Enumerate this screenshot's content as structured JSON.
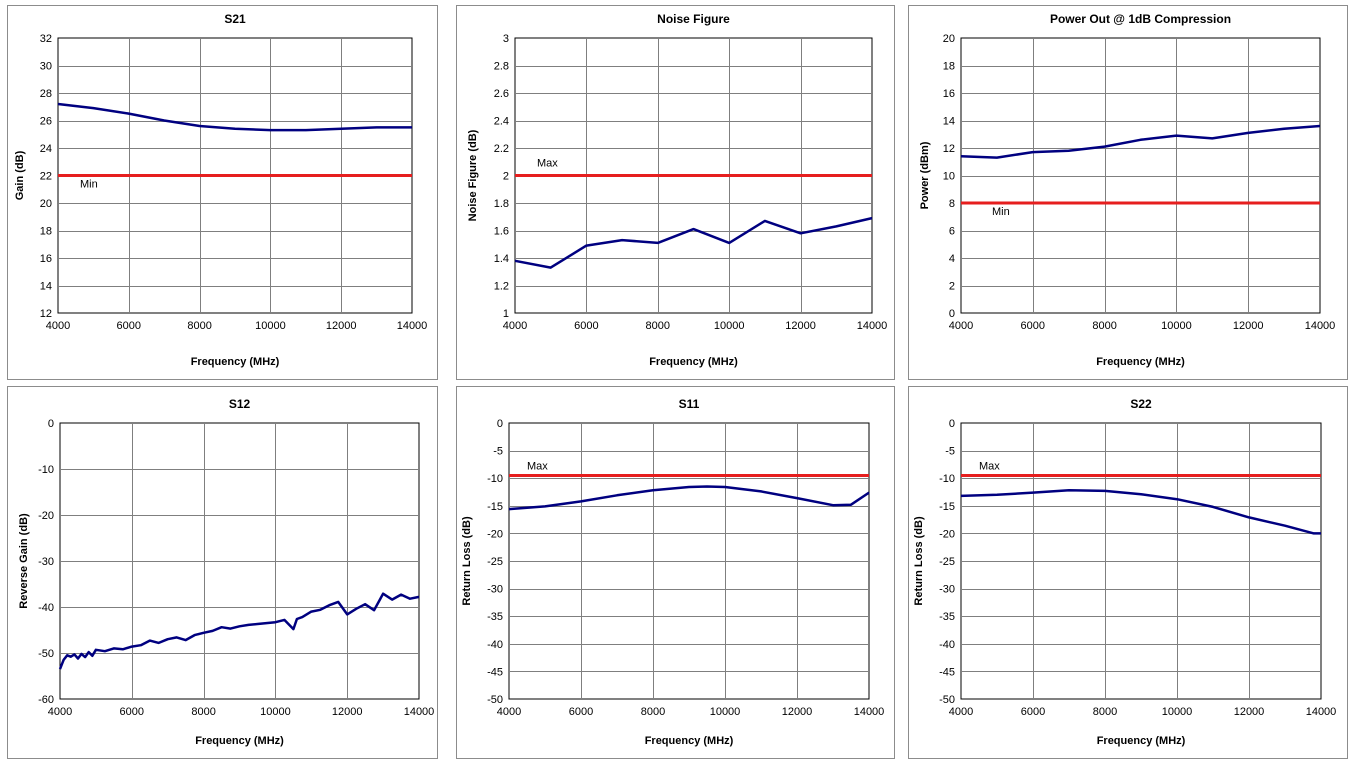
{
  "colors": {
    "series": "#000080",
    "limit": "#e61e1e",
    "grid": "#7f7f7f"
  },
  "chart_data": [
    {
      "type": "line",
      "title": "S21",
      "xlabel": "Frequency (MHz)",
      "ylabel": "Gain (dB)",
      "xlim": [
        4000,
        14000
      ],
      "ylim": [
        12,
        32
      ],
      "xticks": [
        4000,
        6000,
        8000,
        10000,
        12000,
        14000
      ],
      "yticks": [
        12,
        14,
        16,
        18,
        20,
        22,
        24,
        26,
        28,
        30,
        32
      ],
      "grid": true,
      "series": [
        {
          "x": [
            4000,
            5000,
            6000,
            7000,
            8000,
            9000,
            10000,
            11000,
            12000,
            13000,
            14000
          ],
          "y": [
            27.2,
            26.9,
            26.5,
            26.0,
            25.6,
            25.4,
            25.3,
            25.3,
            25.4,
            25.5,
            25.5
          ]
        }
      ],
      "limit": {
        "label": "Min",
        "value": 22
      }
    },
    {
      "type": "line",
      "title": "Noise Figure",
      "xlabel": "Frequency (MHz)",
      "ylabel": "Noise Figure (dB)",
      "xlim": [
        4000,
        14000
      ],
      "ylim": [
        1,
        3
      ],
      "xticks": [
        4000,
        6000,
        8000,
        10000,
        12000,
        14000
      ],
      "yticks": [
        1,
        1.2,
        1.4,
        1.6,
        1.8,
        2,
        2.2,
        2.4,
        2.6,
        2.8,
        3
      ],
      "grid": true,
      "series": [
        {
          "x": [
            4000,
            5000,
            6000,
            7000,
            8000,
            9000,
            10000,
            11000,
            12000,
            13000,
            14000
          ],
          "y": [
            1.38,
            1.33,
            1.49,
            1.53,
            1.51,
            1.61,
            1.51,
            1.67,
            1.58,
            1.63,
            1.69
          ]
        }
      ],
      "limit": {
        "label": "Max",
        "value": 2
      }
    },
    {
      "type": "line",
      "title": "Power Out @ 1dB Compression",
      "xlabel": "Frequency (MHz)",
      "ylabel": "Power (dBm)",
      "xlim": [
        4000,
        14000
      ],
      "ylim": [
        0,
        20
      ],
      "xticks": [
        4000,
        6000,
        8000,
        10000,
        12000,
        14000
      ],
      "yticks": [
        0,
        2,
        4,
        6,
        8,
        10,
        12,
        14,
        16,
        18,
        20
      ],
      "grid": true,
      "series": [
        {
          "x": [
            4000,
            5000,
            6000,
            7000,
            8000,
            9000,
            10000,
            11000,
            12000,
            13000,
            14000
          ],
          "y": [
            11.4,
            11.3,
            11.7,
            11.8,
            12.1,
            12.6,
            12.9,
            12.7,
            13.1,
            13.4,
            13.6
          ]
        }
      ],
      "limit": {
        "label": "Min",
        "value": 8
      }
    },
    {
      "type": "line",
      "title": "S12",
      "xlabel": "Frequency (MHz)",
      "ylabel": "Reverse Gain (dB)",
      "xlim": [
        4000,
        14000
      ],
      "ylim": [
        -60,
        0
      ],
      "xticks": [
        4000,
        6000,
        8000,
        10000,
        12000,
        14000
      ],
      "yticks": [
        -60,
        -50,
        -40,
        -30,
        -20,
        -10,
        0
      ],
      "grid": true,
      "series": [
        {
          "x": [
            4000,
            4100,
            4200,
            4300,
            4400,
            4500,
            4600,
            4700,
            4800,
            4900,
            5000,
            5250,
            5500,
            5750,
            6000,
            6250,
            6500,
            6750,
            7000,
            7250,
            7500,
            7750,
            8000,
            8250,
            8500,
            8750,
            9000,
            9250,
            9500,
            9750,
            10000,
            10250,
            10500,
            10600,
            10750,
            11000,
            11250,
            11500,
            11750,
            12000,
            12250,
            12500,
            12750,
            13000,
            13250,
            13500,
            13750,
            14000
          ],
          "y": [
            -53.5,
            -51.5,
            -50.5,
            -50.8,
            -50.3,
            -51.2,
            -50.2,
            -50.9,
            -49.8,
            -50.6,
            -49.3,
            -49.6,
            -49.0,
            -49.2,
            -48.6,
            -48.3,
            -47.3,
            -47.8,
            -47.0,
            -46.6,
            -47.2,
            -46.1,
            -45.6,
            -45.2,
            -44.4,
            -44.7,
            -44.2,
            -43.9,
            -43.7,
            -43.5,
            -43.3,
            -42.8,
            -44.8,
            -42.6,
            -42.2,
            -41.0,
            -40.6,
            -39.6,
            -38.9,
            -41.6,
            -40.4,
            -39.4,
            -40.7,
            -37.1,
            -38.4,
            -37.3,
            -38.2,
            -37.8
          ]
        }
      ],
      "limit": null
    },
    {
      "type": "line",
      "title": "S11",
      "xlabel": "Frequency (MHz)",
      "ylabel": "Return Loss (dB)",
      "xlim": [
        4000,
        14000
      ],
      "ylim": [
        -50,
        0
      ],
      "xticks": [
        4000,
        6000,
        8000,
        10000,
        12000,
        14000
      ],
      "yticks": [
        -50,
        -45,
        -40,
        -35,
        -30,
        -25,
        -20,
        -15,
        -10,
        -5,
        0
      ],
      "grid": true,
      "series": [
        {
          "x": [
            4000,
            5000,
            6000,
            7000,
            8000,
            9000,
            9500,
            10000,
            11000,
            12000,
            13000,
            13500,
            14000
          ],
          "y": [
            -15.6,
            -15.1,
            -14.2,
            -13.1,
            -12.2,
            -11.6,
            -11.5,
            -11.6,
            -12.4,
            -13.6,
            -14.9,
            -14.8,
            -12.6
          ]
        }
      ],
      "limit": {
        "label": "Max",
        "value": -9.5
      }
    },
    {
      "type": "line",
      "title": "S22",
      "xlabel": "Frequency (MHz)",
      "ylabel": "Return Loss (dB)",
      "xlim": [
        4000,
        14000
      ],
      "ylim": [
        -50,
        0
      ],
      "xticks": [
        4000,
        6000,
        8000,
        10000,
        12000,
        14000
      ],
      "yticks": [
        -50,
        -45,
        -40,
        -35,
        -30,
        -25,
        -20,
        -15,
        -10,
        -5,
        0
      ],
      "grid": true,
      "series": [
        {
          "x": [
            4000,
            5000,
            6000,
            7000,
            8000,
            9000,
            10000,
            11000,
            12000,
            13000,
            13800,
            14000
          ],
          "y": [
            -13.2,
            -13.0,
            -12.6,
            -12.2,
            -12.3,
            -12.9,
            -13.8,
            -15.2,
            -17.1,
            -18.6,
            -20.0,
            -20.0
          ]
        }
      ],
      "limit": {
        "label": "Max",
        "value": -9.5
      }
    }
  ]
}
